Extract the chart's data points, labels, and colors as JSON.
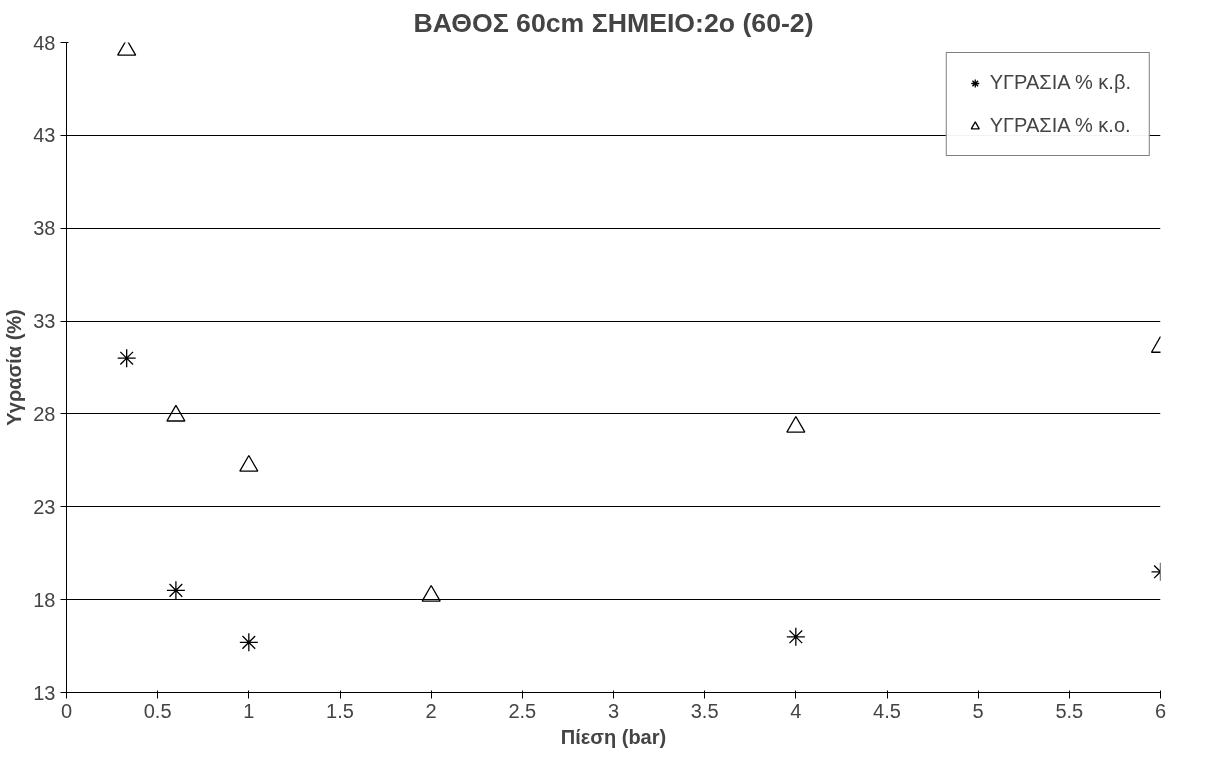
{
  "chart_data": {
    "type": "scatter",
    "title": "ΒΑΘΟΣ 60cm ΣΗΜΕΙΟ:2ο (60-2)",
    "xlabel": "Πίεση (bar)",
    "ylabel": "Υγρασία (%)",
    "xlim": [
      0,
      6
    ],
    "xticks": [
      0,
      0.5,
      1,
      1.5,
      2,
      2.5,
      3,
      3.5,
      4,
      4.5,
      5,
      5.5,
      6
    ],
    "ylim": [
      13,
      48
    ],
    "yticks": [
      13,
      18,
      23,
      28,
      33,
      38,
      43,
      48
    ],
    "grid": "y",
    "legend": "top right",
    "series": [
      {
        "name": "ΥΓΡΑΣΙΑ % κ.β.",
        "color": "#000000",
        "marker": "cross",
        "x": [
          0.33,
          0.6,
          1,
          4,
          6
        ],
        "values": [
          31.0,
          18.5,
          15.7,
          16.0,
          19.5
        ]
      },
      {
        "name": "ΥΓΡΑΣΙΑ % κ.ο.",
        "color": "#000000",
        "marker": "triangle",
        "x": [
          0.33,
          0.6,
          1,
          2,
          4,
          6
        ],
        "values": [
          47.6,
          27.9,
          25.2,
          18.2,
          27.3,
          31.6
        ]
      }
    ]
  }
}
